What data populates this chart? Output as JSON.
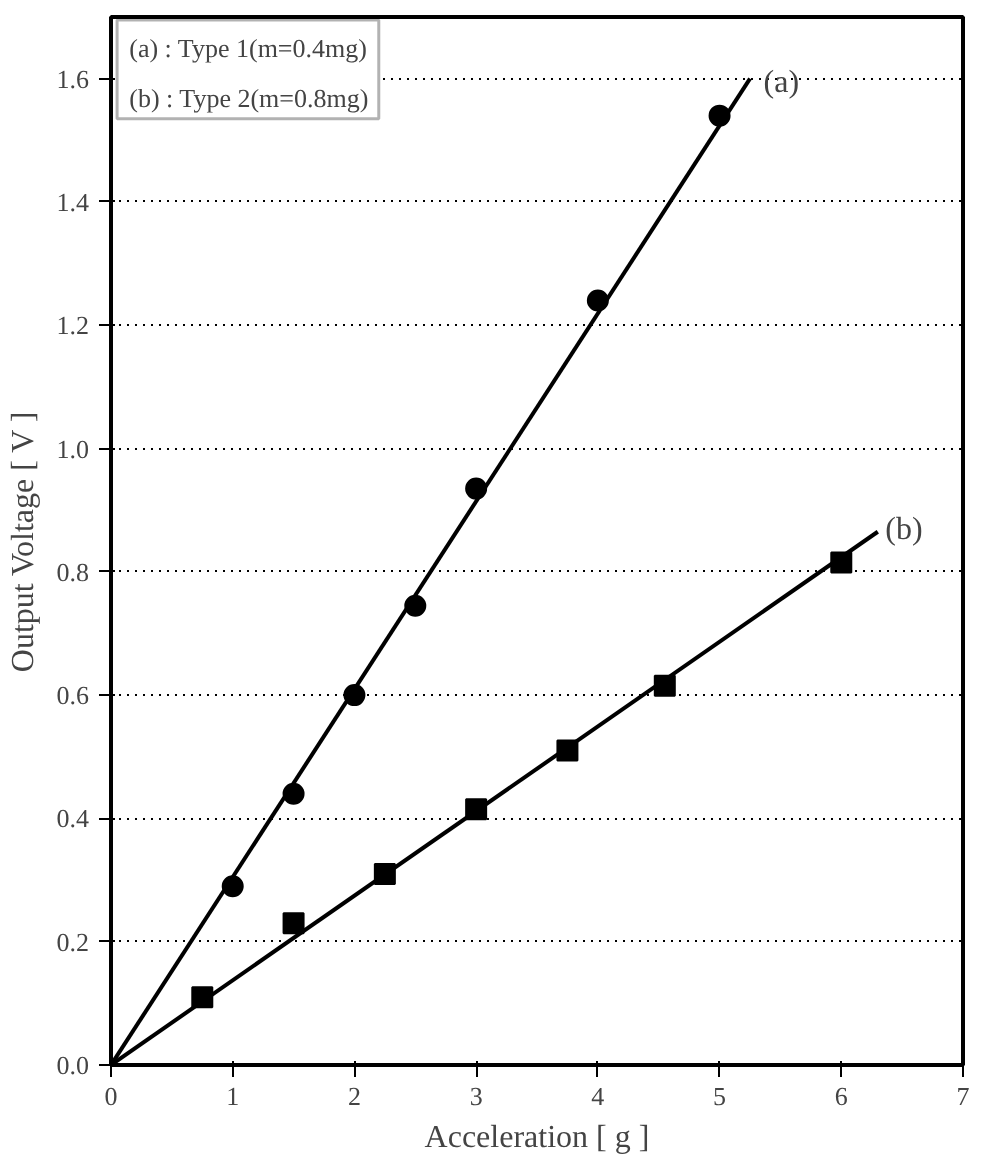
{
  "chart_data": {
    "type": "scatter",
    "xlabel": "Acceleration [ g ]",
    "ylabel": "Output Voltage [ V ]",
    "xlim": [
      0,
      7
    ],
    "ylim": [
      0,
      1.7
    ],
    "xticks": [
      0,
      1,
      2,
      3,
      4,
      5,
      6,
      7
    ],
    "yticks": [
      {
        "value": 0,
        "label": "0.0"
      },
      {
        "value": 0.2,
        "label": "0.2"
      },
      {
        "value": 0.4,
        "label": "0.4"
      },
      {
        "value": 0.6,
        "label": "0.6"
      },
      {
        "value": 0.8,
        "label": "0.8"
      },
      {
        "value": 1.0,
        "label": "1.0"
      },
      {
        "value": 1.2,
        "label": "1.2"
      },
      {
        "value": 1.4,
        "label": "1.4"
      },
      {
        "value": 1.6,
        "label": "1.6"
      }
    ],
    "grid": "y",
    "annotations": [
      "(a) : Type 1(m=0.4mg)",
      "(b) : Type 2(m=0.8mg)"
    ],
    "series": [
      {
        "name": "(a)",
        "color": "#000000",
        "marker": "circle",
        "x": [
          1,
          1.5,
          2,
          2.5,
          3,
          4,
          5
        ],
        "values": [
          0.29,
          0.44,
          0.6,
          0.745,
          0.935,
          1.24,
          1.54
        ]
      },
      {
        "name": "(b)",
        "color": "#000000",
        "marker": "square",
        "x": [
          0.75,
          1.5,
          2.25,
          3,
          3.75,
          4.55,
          6
        ],
        "values": [
          0.11,
          0.23,
          0.31,
          0.415,
          0.51,
          0.615,
          0.815
        ]
      },
      {
        "type": "line",
        "color": "#000000",
        "line_style": "solid",
        "x": [
          0,
          5.25
        ],
        "values": [
          0,
          1.6
        ]
      },
      {
        "type": "line",
        "color": "#000000",
        "line_style": "solid",
        "x": [
          0,
          6.3
        ],
        "values": [
          0,
          0.865
        ]
      }
    ]
  }
}
